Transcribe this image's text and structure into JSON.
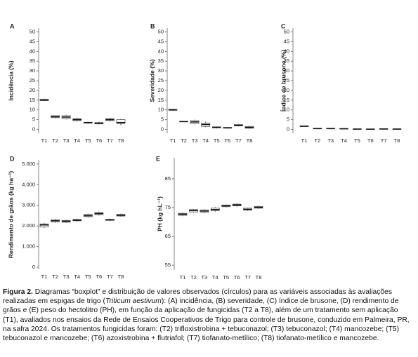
{
  "chart_data": [
    {
      "type": "box",
      "letter": "A",
      "ylabel": "Incidência (%)",
      "categories": [
        "T1",
        "T2",
        "T3",
        "T4",
        "T5",
        "T6",
        "T7",
        "T8"
      ],
      "boxes": [
        {
          "low": 14.5,
          "q1": 14.8,
          "median": 15,
          "q3": 15.5,
          "high": 15.8
        },
        {
          "low": 5.5,
          "q1": 6,
          "median": 6.5,
          "q3": 7,
          "high": 7
        },
        {
          "low": 5,
          "q1": 5.5,
          "median": 6.3,
          "q3": 7,
          "high": 7.5
        },
        {
          "low": 4,
          "q1": 4.5,
          "median": 5,
          "q3": 5.5,
          "high": 6
        },
        {
          "low": 3,
          "q1": 3.2,
          "median": 3.5,
          "q3": 3.5,
          "high": 3.8
        },
        {
          "low": 2.5,
          "q1": 2.8,
          "median": 3,
          "q3": 3.5,
          "high": 4
        },
        {
          "low": 4,
          "q1": 4.5,
          "median": 5,
          "q3": 5.5,
          "high": 6
        },
        {
          "low": 2,
          "q1": 3,
          "median": 3.5,
          "q3": 5,
          "high": 5.5
        }
      ],
      "ylim": [
        -2,
        52
      ],
      "yticks": [
        0,
        5,
        10,
        15,
        20,
        25,
        30,
        35,
        40,
        45,
        50
      ],
      "box_color": "#555555",
      "median_color": "#111111"
    },
    {
      "type": "box",
      "letter": "B",
      "ylabel": "Severidade (%)",
      "categories": [
        "T1",
        "T2",
        "T3",
        "T4",
        "T5",
        "T6",
        "T7",
        "T8"
      ],
      "boxes": [
        {
          "low": 9.5,
          "q1": 9.8,
          "median": 10,
          "q3": 10.3,
          "high": 10.5
        },
        {
          "low": 3.8,
          "q1": 3.9,
          "median": 4,
          "q3": 4.1,
          "high": 4.2
        },
        {
          "low": 2.5,
          "q1": 3,
          "median": 3.8,
          "q3": 4.5,
          "high": 5
        },
        {
          "low": 1,
          "q1": 1.5,
          "median": 2.5,
          "q3": 3.2,
          "high": 4
        },
        {
          "low": 0.5,
          "q1": 0.8,
          "median": 1,
          "q3": 1.3,
          "high": 1.5
        },
        {
          "low": 0.4,
          "q1": 0.6,
          "median": 0.8,
          "q3": 1,
          "high": 1.1
        },
        {
          "low": 1.5,
          "q1": 1.8,
          "median": 2,
          "q3": 2.5,
          "high": 2.8
        },
        {
          "low": 0.3,
          "q1": 0.6,
          "median": 1,
          "q3": 1.5,
          "high": 2
        }
      ],
      "ylim": [
        -2,
        52
      ],
      "yticks": [
        0,
        5,
        10,
        15,
        20,
        25,
        30,
        35,
        40,
        45,
        50
      ],
      "box_color": "#555555",
      "median_color": "#111111"
    },
    {
      "type": "box",
      "letter": "C",
      "ylabel": "Índice de brusone (%)",
      "categories": [
        "T1",
        "T2",
        "T3",
        "T4",
        "T5",
        "T6",
        "T7",
        "T8"
      ],
      "boxes": [
        {
          "low": 1.4,
          "q1": 1.5,
          "median": 1.6,
          "q3": 1.8,
          "high": 1.9
        },
        {
          "low": 0.2,
          "q1": 0.3,
          "median": 0.4,
          "q3": 0.5,
          "high": 0.6
        },
        {
          "low": 0.2,
          "q1": 0.3,
          "median": 0.4,
          "q3": 0.5,
          "high": 0.6
        },
        {
          "low": 0.1,
          "q1": 0.2,
          "median": 0.3,
          "q3": 0.4,
          "high": 0.5
        },
        {
          "low": 0.05,
          "q1": 0.1,
          "median": 0.15,
          "q3": 0.2,
          "high": 0.25
        },
        {
          "low": 0.05,
          "q1": 0.1,
          "median": 0.1,
          "q3": 0.15,
          "high": 0.2
        },
        {
          "low": 0.1,
          "q1": 0.15,
          "median": 0.2,
          "q3": 0.25,
          "high": 0.3
        },
        {
          "low": 0.05,
          "q1": 0.1,
          "median": 0.15,
          "q3": 0.2,
          "high": 0.25
        }
      ],
      "ylim": [
        -2,
        52
      ],
      "yticks": [
        0,
        5,
        10,
        15,
        20,
        25,
        30,
        35,
        40,
        45,
        50
      ],
      "box_color": "#555555",
      "median_color": "#111111"
    },
    {
      "type": "box",
      "letter": "D",
      "ylabel": "Rendimento de grãos (kg ha⁻¹)",
      "categories": [
        "T1",
        "T2",
        "T3",
        "T4",
        "T5",
        "T6",
        "T7",
        "T8"
      ],
      "boxes": [
        {
          "low": 1900,
          "q1": 1950,
          "median": 2050,
          "q3": 2100,
          "high": 2150
        },
        {
          "low": 2150,
          "q1": 2200,
          "median": 2250,
          "q3": 2300,
          "high": 2350
        },
        {
          "low": 2150,
          "q1": 2180,
          "median": 2230,
          "q3": 2270,
          "high": 2300
        },
        {
          "low": 2200,
          "q1": 2250,
          "median": 2280,
          "q3": 2320,
          "high": 2350
        },
        {
          "low": 2400,
          "q1": 2450,
          "median": 2500,
          "q3": 2560,
          "high": 2600
        },
        {
          "low": 2500,
          "q1": 2550,
          "median": 2600,
          "q3": 2650,
          "high": 2700
        },
        {
          "low": 2250,
          "q1": 2270,
          "median": 2300,
          "q3": 2320,
          "high": 2350
        },
        {
          "low": 2450,
          "q1": 2480,
          "median": 2520,
          "q3": 2560,
          "high": 2600
        }
      ],
      "ylim": [
        -100,
        5200
      ],
      "yticks": [
        0,
        {
          "value": 1000,
          "label": "1.000"
        },
        {
          "value": 2000,
          "label": "2.000"
        },
        {
          "value": 3000,
          "label": "3.000"
        },
        {
          "value": 4000,
          "label": "4.000"
        },
        {
          "value": 5000,
          "label": "5.000"
        }
      ],
      "box_color": "#555555",
      "median_color": "#111111"
    },
    {
      "type": "box",
      "letter": "E",
      "ylabel": "PH (kg hL⁻¹)",
      "categories": [
        "T1",
        "T2",
        "T3",
        "T4",
        "T5",
        "T6",
        "T7",
        "T8"
      ],
      "boxes": [
        {
          "low": 72,
          "q1": 72.3,
          "median": 72.7,
          "q3": 73,
          "high": 73.3
        },
        {
          "low": 73.2,
          "q1": 73.5,
          "median": 74,
          "q3": 74.3,
          "high": 74.5
        },
        {
          "low": 73,
          "q1": 73.4,
          "median": 73.8,
          "q3": 74.2,
          "high": 74.5
        },
        {
          "low": 73.5,
          "q1": 73.9,
          "median": 74.3,
          "q3": 74.8,
          "high": 75.2
        },
        {
          "low": 75,
          "q1": 75.3,
          "median": 75.6,
          "q3": 75.9,
          "high": 76
        },
        {
          "low": 75.3,
          "q1": 75.6,
          "median": 75.9,
          "q3": 76.2,
          "high": 76.4
        },
        {
          "low": 73.8,
          "q1": 74.1,
          "median": 74.4,
          "q3": 74.8,
          "high": 75
        },
        {
          "low": 74.5,
          "q1": 74.8,
          "median": 75.1,
          "q3": 75.4,
          "high": 75.7
        }
      ],
      "ylim": [
        53.3,
        92.3
      ],
      "yticks": [
        55,
        65,
        75,
        85
      ],
      "box_color": "#555555",
      "median_color": "#111111"
    }
  ],
  "caption": {
    "label": "Figura 2.",
    "text_1": " Diagramas “boxplot” e distribuição de valores observados (círculos) para as variáveis associadas às avaliações realizadas em espigas de trigo (",
    "italic": "Triticum aestivum",
    "text_2": "): (A) incidência, (B) severidade, (C) índice de brusone, (D) rendimento de grãos e (E) peso do hectolitro (PH), em função da aplicação de fungicidas (T2 a T8), além de um tratamento sem aplicação (T1), avaliados nos ensaios da Rede de Ensaios Cooperativos de Trigo para controle de brusone, conduzido em Palmeira, PR, na safra 2024. Os tratamentos fungicidas foram: (T2) trifloxistrobina + tebuconazol; (T3) tebuconazol; (T4) mancozebe; (T5) tebuconazol e mancozebe; (T6) azoxistrobina + flutriafol; (T7) tiofanato-metílico; (T8) tiofanato-metílico e mancozebe."
  }
}
